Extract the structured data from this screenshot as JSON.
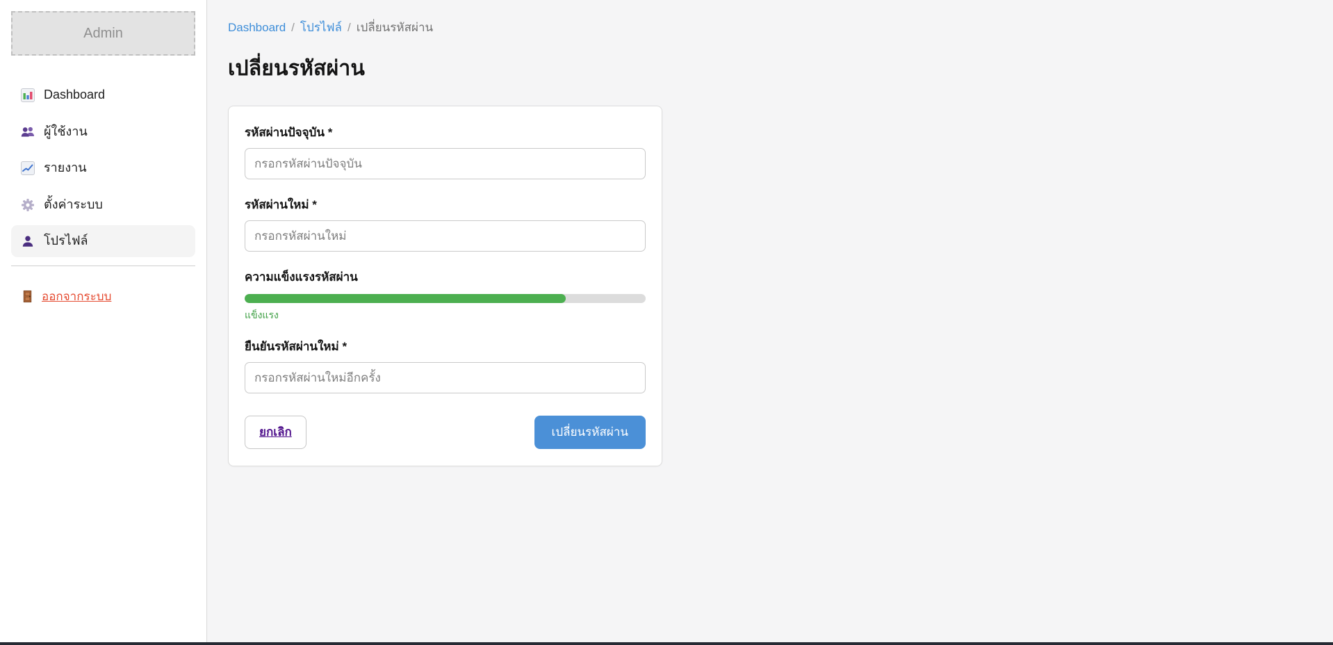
{
  "sidebar": {
    "brand": "Admin",
    "items": [
      {
        "label": "Dashboard",
        "icon": "bar-chart-icon",
        "active": false
      },
      {
        "label": "ผู้ใช้งาน",
        "icon": "users-icon",
        "active": false
      },
      {
        "label": "รายงาน",
        "icon": "line-chart-icon",
        "active": false
      },
      {
        "label": "ตั้งค่าระบบ",
        "icon": "gear-icon",
        "active": false
      },
      {
        "label": "โปรไฟล์",
        "icon": "person-icon",
        "active": true
      }
    ],
    "logout": {
      "label": "ออกจากระบบ",
      "icon": "door-icon"
    }
  },
  "breadcrumb": {
    "separator": "/",
    "items": [
      {
        "label": "Dashboard",
        "type": "link"
      },
      {
        "label": "โปรไฟล์",
        "type": "link"
      },
      {
        "label": "เปลี่ยนรหัสผ่าน",
        "type": "current"
      }
    ]
  },
  "page": {
    "title": "เปลี่ยนรหัสผ่าน"
  },
  "form": {
    "current_password": {
      "label": "รหัสผ่านปัจจุบัน *",
      "placeholder": "กรอกรหัสผ่านปัจจุบัน",
      "value": ""
    },
    "new_password": {
      "label": "รหัสผ่านใหม่ *",
      "placeholder": "กรอกรหัสผ่านใหม่",
      "value": ""
    },
    "strength": {
      "label": "ความแข็งแรงรหัสผ่าน",
      "value_text": "แข็งแรง",
      "percent": 80,
      "fill_color": "#4caf50",
      "text_color": "#3fa045"
    },
    "confirm_password": {
      "label": "ยืนยันรหัสผ่านใหม่ *",
      "placeholder": "กรอกรหัสผ่านใหม่อีกครั้ง",
      "value": ""
    },
    "cancel_label": "ยกเลิก",
    "submit_label": "เปลี่ยนรหัสผ่าน"
  },
  "colors": {
    "accent_blue": "#4b90d7",
    "link_blue": "#3e8ed9",
    "logout_red": "#e5492f",
    "cancel_purple": "#50128c",
    "strength_green": "#4caf50",
    "main_bg": "#f5f5f6",
    "sidebar_bg": "#ffffff",
    "active_item_bg": "#f4f4f4"
  }
}
